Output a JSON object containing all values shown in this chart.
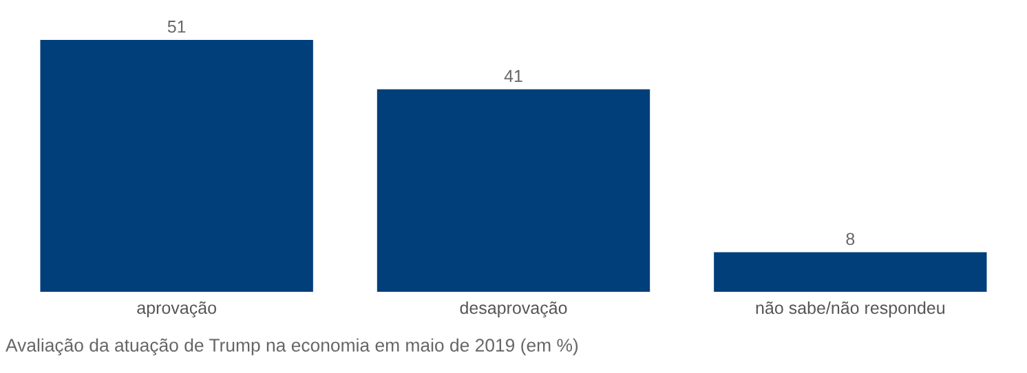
{
  "chart_data": {
    "type": "bar",
    "categories": [
      "aprovação",
      "desaprovação",
      "não sabe/não respondeu"
    ],
    "values": [
      51,
      41,
      8
    ],
    "color": "#003f7a",
    "data_labels": true,
    "grid": false,
    "annotations": [
      "Avaliação da atuação de Trump na economia em maio de 2019 (em %)"
    ]
  }
}
